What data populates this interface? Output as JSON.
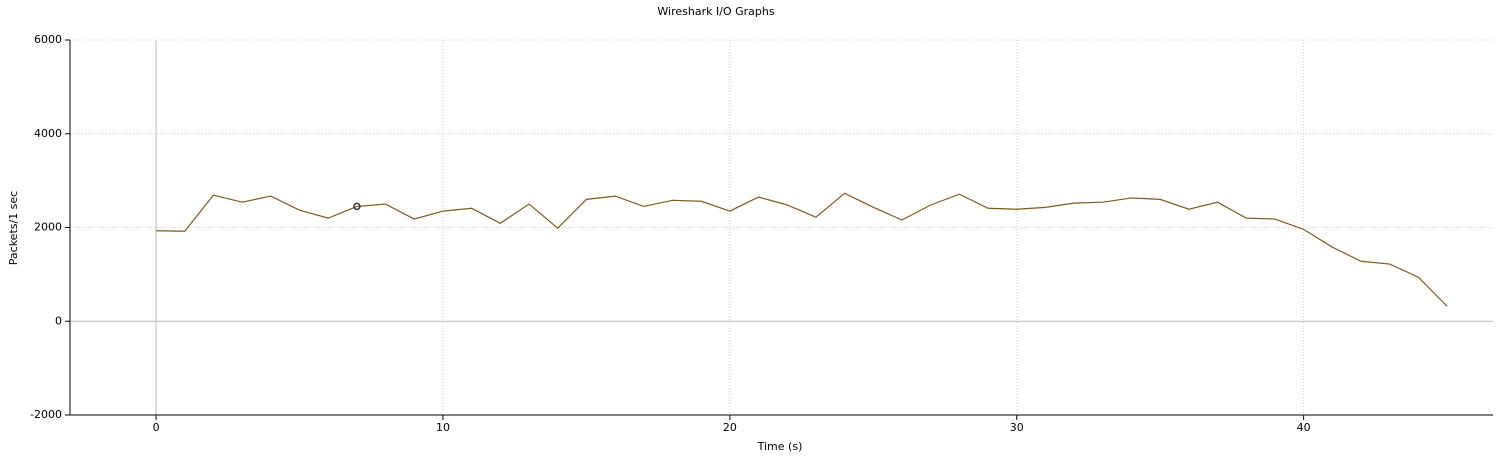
{
  "chart_data": {
    "type": "line",
    "title": "Wireshark I/O Graphs",
    "xlabel": "Time (s)",
    "ylabel": "Packets/1 sec",
    "x": [
      0,
      1,
      2,
      3,
      4,
      5,
      6,
      7,
      8,
      9,
      10,
      11,
      12,
      13,
      14,
      15,
      16,
      17,
      18,
      19,
      20,
      21,
      22,
      23,
      24,
      25,
      26,
      27,
      28,
      29,
      30,
      31,
      32,
      33,
      34,
      35,
      36,
      37,
      38,
      39,
      40,
      41,
      42,
      43,
      44,
      45
    ],
    "series": [
      {
        "color": "#7a5c1e",
        "values": [
          1930,
          1920,
          2690,
          2540,
          2670,
          2370,
          2200,
          2450,
          2500,
          2180,
          2350,
          2410,
          2090,
          2500,
          1985,
          2600,
          2670,
          2450,
          2580,
          2560,
          2350,
          2650,
          2480,
          2220,
          2730,
          2430,
          2160,
          2480,
          2710,
          2410,
          2390,
          2430,
          2520,
          2540,
          2630,
          2600,
          2390,
          2540,
          2200,
          2180,
          1960,
          1580,
          1280,
          1220,
          940,
          320
        ]
      }
    ],
    "marker_index": 7,
    "xlim": [
      -3,
      46.6
    ],
    "xticks": [
      0,
      10,
      20,
      30,
      40
    ],
    "ylim": [
      -2000,
      6000
    ],
    "yticks": [
      -2000,
      0,
      2000,
      4000,
      6000
    ],
    "grid": true
  }
}
